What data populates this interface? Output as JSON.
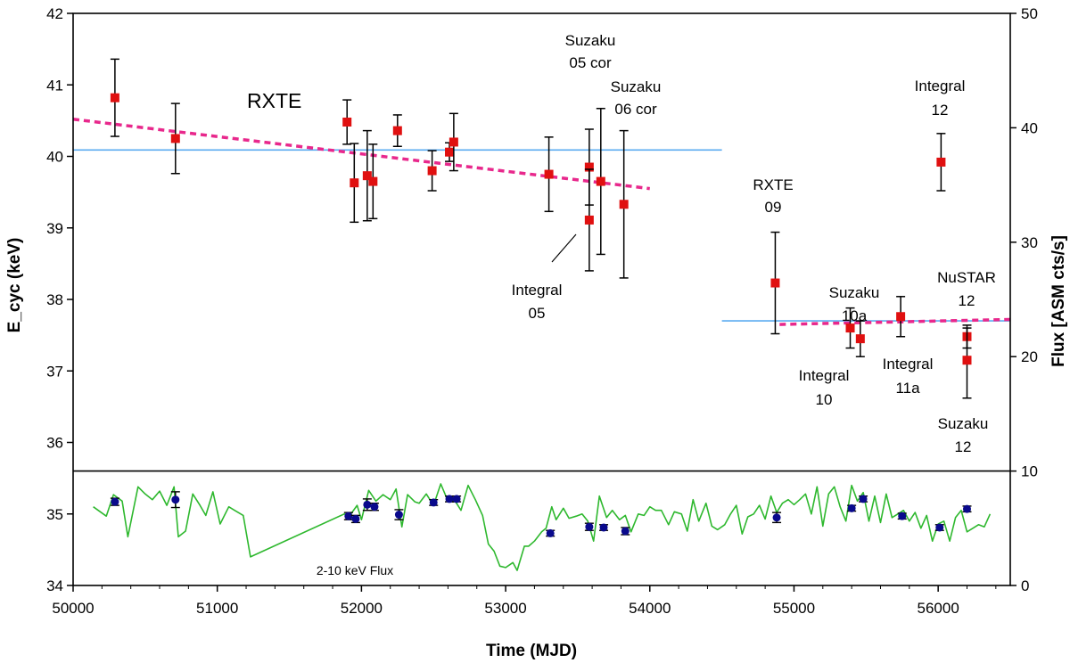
{
  "chart_data": {
    "type": "scatter",
    "xlabel": "Time  (MJD)",
    "ylabel_left": "E_cyc (keV)",
    "ylabel_right": "Flux [ASM cts/s]",
    "xlim": [
      50000,
      56500
    ],
    "xticks": [
      "50000",
      "51000",
      "52000",
      "53000",
      "54000",
      "55000",
      "56000"
    ],
    "ylim_left": [
      34,
      42
    ],
    "yticks_left": [
      "34",
      "35",
      "36",
      "37",
      "38",
      "39",
      "40",
      "41",
      "42"
    ],
    "ylim_right": [
      0,
      50
    ],
    "yticks_right": [
      "0",
      "10",
      "20",
      "30",
      "40",
      "50"
    ],
    "panel_divider_y": 35.6,
    "cyclotron_points": {
      "color": "#e01010",
      "points": [
        {
          "x": 50290,
          "y": 40.82,
          "lo": 40.28,
          "hi": 41.36
        },
        {
          "x": 50710,
          "y": 40.25,
          "lo": 39.76,
          "hi": 40.74
        },
        {
          "x": 51900,
          "y": 40.48,
          "lo": 40.17,
          "hi": 40.79
        },
        {
          "x": 51950,
          "y": 39.63,
          "lo": 39.08,
          "hi": 40.18
        },
        {
          "x": 52040,
          "y": 39.73,
          "lo": 39.1,
          "hi": 40.36
        },
        {
          "x": 52080,
          "y": 39.65,
          "lo": 39.13,
          "hi": 40.17
        },
        {
          "x": 52250,
          "y": 40.36,
          "lo": 40.14,
          "hi": 40.58
        },
        {
          "x": 52490,
          "y": 39.8,
          "lo": 39.52,
          "hi": 40.08
        },
        {
          "x": 52610,
          "y": 40.06,
          "lo": 39.93,
          "hi": 40.19
        },
        {
          "x": 52640,
          "y": 40.2,
          "lo": 39.8,
          "hi": 40.6
        },
        {
          "x": 53300,
          "y": 39.75,
          "lo": 39.23,
          "hi": 40.27
        },
        {
          "x": 53580,
          "y": 39.85,
          "lo": 39.32,
          "hi": 40.38
        },
        {
          "x": 53580,
          "y": 39.11,
          "lo": 38.4,
          "hi": 39.82
        },
        {
          "x": 53660,
          "y": 39.65,
          "lo": 38.63,
          "hi": 40.67
        },
        {
          "x": 53820,
          "y": 39.33,
          "lo": 38.3,
          "hi": 40.36
        },
        {
          "x": 54870,
          "y": 38.23,
          "lo": 37.52,
          "hi": 38.94
        },
        {
          "x": 55390,
          "y": 37.6,
          "lo": 37.32,
          "hi": 37.88
        },
        {
          "x": 55460,
          "y": 37.45,
          "lo": 37.2,
          "hi": 37.7
        },
        {
          "x": 55740,
          "y": 37.76,
          "lo": 37.48,
          "hi": 38.04
        },
        {
          "x": 56020,
          "y": 39.92,
          "lo": 39.52,
          "hi": 40.32
        },
        {
          "x": 56200,
          "y": 37.48,
          "lo": 37.32,
          "hi": 37.64
        },
        {
          "x": 56200,
          "y": 37.15,
          "lo": 36.62,
          "hi": 37.6
        }
      ]
    },
    "reference_lines": [
      {
        "x1": 50000,
        "x2": 54500,
        "y": 40.09,
        "color": "#5aabf0"
      },
      {
        "x1": 54500,
        "x2": 56500,
        "y": 37.7,
        "color": "#5aabf0"
      }
    ],
    "trend_lines": [
      {
        "x1": 50000,
        "y1": 40.52,
        "x2": 54000,
        "y2": 39.55,
        "color": "#e8288c"
      },
      {
        "x1": 54900,
        "y1": 37.65,
        "x2": 56500,
        "y2": 37.72,
        "color": "#e8288c"
      }
    ],
    "flux_points": {
      "color": "#0a0a8c",
      "points": [
        {
          "x": 50290,
          "y": 35.17,
          "err": 0.05
        },
        {
          "x": 50710,
          "y": 35.2,
          "err": 0.11
        },
        {
          "x": 51910,
          "y": 34.97,
          "err": 0.05
        },
        {
          "x": 51960,
          "y": 34.93,
          "err": 0.05
        },
        {
          "x": 52040,
          "y": 35.13,
          "err": 0.08
        },
        {
          "x": 52090,
          "y": 35.1,
          "err": 0.05
        },
        {
          "x": 52260,
          "y": 34.99,
          "err": 0.07
        },
        {
          "x": 52500,
          "y": 35.16,
          "err": 0.04
        },
        {
          "x": 52610,
          "y": 35.21,
          "err": 0.04
        },
        {
          "x": 52660,
          "y": 35.21,
          "err": 0.04
        },
        {
          "x": 53310,
          "y": 34.73,
          "err": 0.04
        },
        {
          "x": 53580,
          "y": 34.82,
          "err": 0.05
        },
        {
          "x": 53680,
          "y": 34.81,
          "err": 0.04
        },
        {
          "x": 53830,
          "y": 34.76,
          "err": 0.05
        },
        {
          "x": 54880,
          "y": 34.95,
          "err": 0.07
        },
        {
          "x": 55400,
          "y": 35.08,
          "err": 0.04
        },
        {
          "x": 55480,
          "y": 35.21,
          "err": 0.04
        },
        {
          "x": 55750,
          "y": 34.97,
          "err": 0.04
        },
        {
          "x": 56010,
          "y": 34.81,
          "err": 0.04
        },
        {
          "x": 56200,
          "y": 35.07,
          "err": 0.04
        }
      ]
    },
    "flux_curve": {
      "color": "#2eb82e",
      "x": [
        50140,
        50230,
        50280,
        50340,
        50380,
        50450,
        50500,
        50550,
        50600,
        50650,
        50700,
        50730,
        50780,
        50830,
        50880,
        50920,
        50970,
        51020,
        51080,
        51120,
        51180,
        51230,
        51880,
        51920,
        51970,
        52000,
        52050,
        52100,
        52150,
        52200,
        52240,
        52280,
        52320,
        52370,
        52400,
        52450,
        52500,
        52550,
        52600,
        52650,
        52690,
        52740,
        52790,
        52840,
        52880,
        52920,
        52960,
        53000,
        53050,
        53080,
        53130,
        53160,
        53200,
        53250,
        53280,
        53320,
        53350,
        53400,
        53440,
        53490,
        53530,
        53570,
        53610,
        53650,
        53700,
        53740,
        53790,
        53830,
        53870,
        53920,
        53960,
        54000,
        54040,
        54080,
        54130,
        54170,
        54220,
        54260,
        54300,
        54340,
        54390,
        54430,
        54470,
        54520,
        54560,
        54600,
        54640,
        54680,
        54720,
        54760,
        54800,
        54840,
        54880,
        54920,
        54960,
        55000,
        55040,
        55080,
        55120,
        55160,
        55200,
        55240,
        55280,
        55320,
        55360,
        55400,
        55440,
        55480,
        55520,
        55560,
        55600,
        55640,
        55680,
        55720,
        55760,
        55800,
        55840,
        55880,
        55920,
        55960,
        56000,
        56040,
        56080,
        56120,
        56160,
        56200,
        56240,
        56280,
        56320,
        56360
      ],
      "y": [
        35.1,
        34.97,
        35.27,
        35.18,
        34.68,
        35.38,
        35.28,
        35.2,
        35.32,
        35.12,
        35.38,
        34.68,
        34.76,
        35.28,
        35.12,
        34.98,
        35.31,
        34.86,
        35.1,
        35.05,
        34.98,
        34.4,
        35.0,
        34.98,
        35.12,
        34.92,
        35.33,
        35.18,
        35.27,
        35.2,
        35.35,
        34.82,
        35.27,
        35.17,
        35.15,
        35.28,
        35.12,
        35.42,
        35.18,
        35.18,
        35.05,
        35.4,
        35.2,
        34.98,
        34.58,
        34.48,
        34.27,
        34.25,
        34.32,
        34.21,
        34.55,
        34.55,
        34.62,
        34.75,
        34.8,
        35.1,
        34.92,
        35.08,
        34.94,
        34.97,
        35.0,
        34.9,
        34.62,
        35.25,
        34.95,
        35.05,
        34.92,
        34.98,
        34.75,
        35.0,
        34.98,
        35.1,
        35.05,
        35.05,
        34.85,
        35.03,
        35.0,
        34.76,
        35.2,
        34.9,
        35.15,
        34.83,
        34.78,
        34.85,
        35.0,
        35.12,
        34.72,
        34.96,
        35.0,
        35.12,
        34.93,
        35.25,
        35.02,
        35.15,
        35.2,
        35.13,
        35.2,
        35.28,
        35.0,
        35.38,
        34.83,
        35.28,
        35.38,
        35.1,
        34.9,
        35.4,
        35.18,
        35.3,
        34.9,
        35.25,
        34.88,
        35.28,
        34.95,
        35.0,
        35.05,
        34.9,
        35.02,
        34.8,
        34.98,
        34.62,
        34.86,
        34.9,
        34.62,
        34.95,
        35.05,
        34.75,
        34.8,
        34.85,
        34.82,
        35.0
      ]
    },
    "annotations": {
      "rxte": "RXTE",
      "rxte09": [
        "RXTE",
        "09"
      ],
      "suzaku05": [
        "Suzaku",
        "05 cor"
      ],
      "suzaku06": [
        "Suzaku",
        "06 cor"
      ],
      "integral05": [
        "Integral",
        "05"
      ],
      "integral12": [
        "Integral",
        "12"
      ],
      "suzaku10a": [
        "Suzaku",
        "10a"
      ],
      "nustar12": [
        "NuSTAR",
        "12"
      ],
      "integral10": [
        "Integral",
        "10"
      ],
      "integral11a": [
        "Integral",
        "11a"
      ],
      "suzaku12": [
        "Suzaku",
        "12"
      ],
      "flux_label": "2-10 keV Flux"
    }
  }
}
